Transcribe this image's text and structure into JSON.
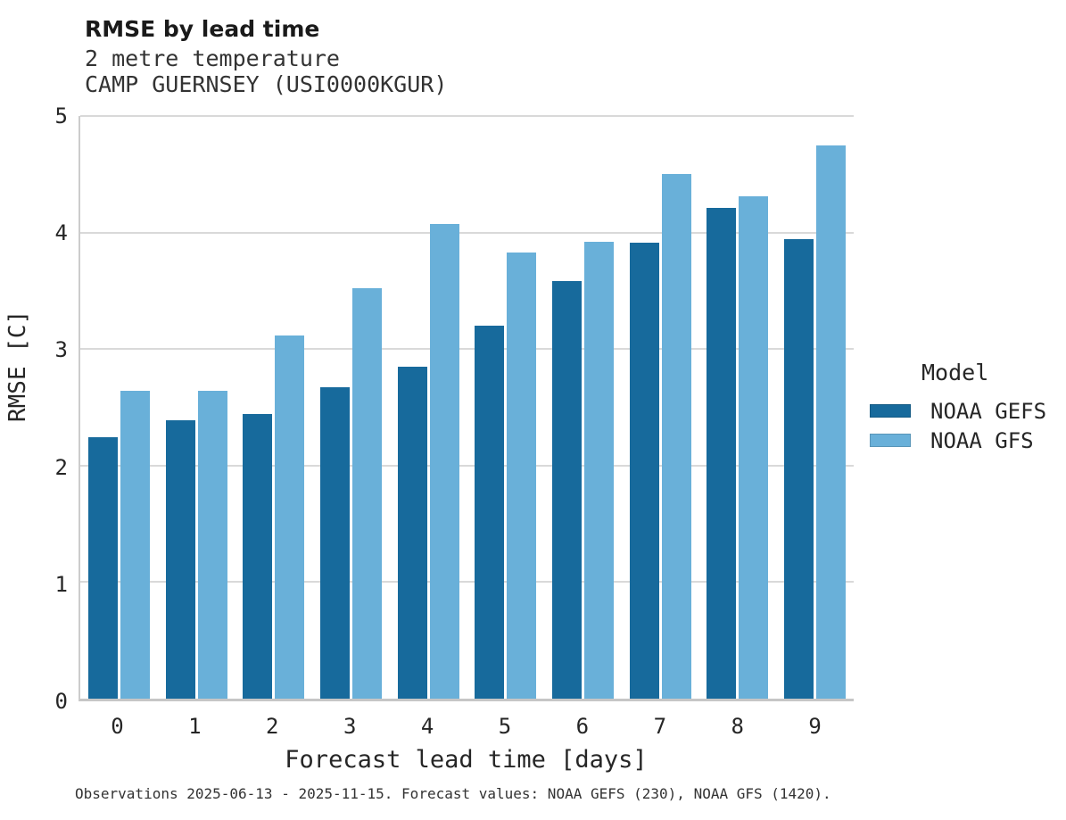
{
  "header": {
    "title": "RMSE by lead time",
    "subtitle_line1": "2 metre temperature",
    "subtitle_line2": "CAMP GUERNSEY (USI0000KGUR)"
  },
  "chart_data": {
    "type": "bar",
    "title": "RMSE by lead time",
    "subtitle": [
      "2 metre temperature",
      "CAMP GUERNSEY (USI0000KGUR)"
    ],
    "categories": [
      "0",
      "1",
      "2",
      "3",
      "4",
      "5",
      "6",
      "7",
      "8",
      "9"
    ],
    "series": [
      {
        "name": "NOAA GEFS",
        "color": "#176a9c",
        "values": [
          2.24,
          2.39,
          2.44,
          2.67,
          2.85,
          3.2,
          3.58,
          3.91,
          4.21,
          3.94
        ]
      },
      {
        "name": "NOAA GFS",
        "color": "#69b0d9",
        "values": [
          2.64,
          2.64,
          3.12,
          3.52,
          4.07,
          3.83,
          3.92,
          4.5,
          4.31,
          4.75
        ]
      }
    ],
    "xlabel": "Forecast lead time [days]",
    "ylabel": "RMSE [C]",
    "ylim": [
      0,
      5
    ],
    "yticks": [
      0,
      1,
      2,
      3,
      4,
      5
    ],
    "grid": true,
    "legend_title": "Model",
    "legend_position": "right"
  },
  "legend": {
    "title": "Model",
    "items": [
      {
        "label": "NOAA GEFS",
        "color": "#176a9c"
      },
      {
        "label": "NOAA GFS",
        "color": "#69b0d9"
      }
    ]
  },
  "footer": {
    "caption": "Observations 2025-06-13 - 2025-11-15. Forecast values: NOAA GEFS (230), NOAA GFS (1420)."
  },
  "colors": {
    "background": "#ffffff",
    "grid": "#d9d9d9",
    "spine": "#c6c6c6",
    "title_text": "#1a1a1a",
    "text": "#262626"
  }
}
